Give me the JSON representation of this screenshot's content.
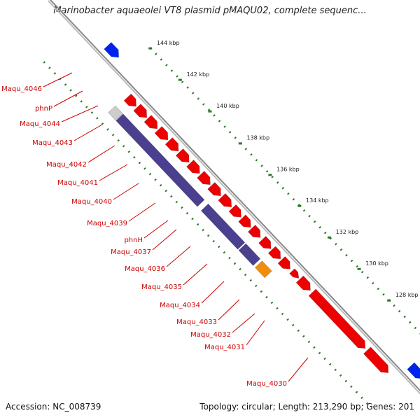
{
  "title": "Marinobacter aquaeolei VT8 plasmid pMAQU02, complete sequenc...",
  "footer": {
    "accession": "Accession: NC_008739",
    "summary": "Topology: circular; Length: 213,290 bp; Genes: 201"
  },
  "colors": {
    "forward_cds": "#ee0000",
    "reverse_block": "#4b3f8f",
    "special_cds": "#f28c0f",
    "unknown_cds": "#cccccc",
    "other_strand": "#0022ee",
    "ticks": "#2a7a2a",
    "backbone": "#888888",
    "label": "#cc0000"
  },
  "kbp_ticks": [
    {
      "kbp": 144,
      "label": "144 kbp"
    },
    {
      "kbp": 142,
      "label": "142 kbp"
    },
    {
      "kbp": 140,
      "label": "140 kbp"
    },
    {
      "kbp": 138,
      "label": "138 kbp"
    },
    {
      "kbp": 136,
      "label": "136 kbp"
    },
    {
      "kbp": 134,
      "label": "134 kbp"
    },
    {
      "kbp": 132,
      "label": "132 kbp"
    },
    {
      "kbp": 130,
      "label": "130 kbp"
    },
    {
      "kbp": 128,
      "label": "128 kbp"
    }
  ],
  "gene_labels": [
    "Maqu_4046",
    "phnP",
    "Maqu_4044",
    "Maqu_4043",
    "Maqu_4042",
    "Maqu_4041",
    "Maqu_4040",
    "Maqu_4039",
    "phnH",
    "Maqu_4037",
    "Maqu_4036",
    "Maqu_4035",
    "Maqu_4034",
    "Maqu_4033",
    "Maqu_4032",
    "Maqu_4031",
    "Maqu_4030"
  ]
}
